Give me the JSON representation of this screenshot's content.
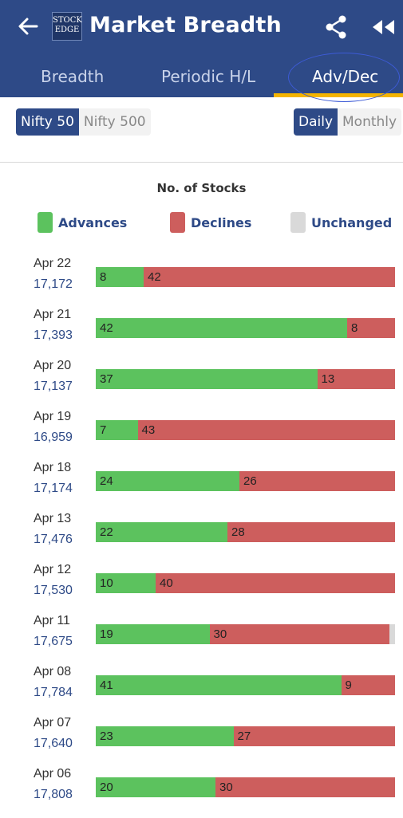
{
  "header": {
    "title": "Market Breadth",
    "logo_text_top": "STOCK",
    "logo_text_bottom": "EDGE"
  },
  "tabs": [
    {
      "label": "Breadth",
      "active": false
    },
    {
      "label": "Periodic H/L",
      "active": false
    },
    {
      "label": "Adv/Dec",
      "active": true
    }
  ],
  "index_toggle": [
    {
      "label": "Nifty 50",
      "selected": true
    },
    {
      "label": "Nifty 500",
      "selected": false
    }
  ],
  "period_toggle": [
    {
      "label": "Daily",
      "selected": true
    },
    {
      "label": "Monthly",
      "selected": false
    }
  ],
  "colors": {
    "advances": "#5cc25e",
    "declines": "#cd5e5d",
    "unchanged": "#d9d9d9",
    "brand": "#2e4a87",
    "accent": "#f4b400"
  },
  "chart_data": {
    "type": "bar",
    "orientation": "horizontal",
    "stacked": true,
    "title": "No. of Stocks",
    "legend": [
      "Advances",
      "Declines",
      "Unchanged"
    ],
    "rows": [
      {
        "date": "Apr 22",
        "close": "17,172",
        "advances": 8,
        "declines": 42,
        "unchanged": 0
      },
      {
        "date": "Apr 21",
        "close": "17,393",
        "advances": 42,
        "declines": 8,
        "unchanged": 0
      },
      {
        "date": "Apr 20",
        "close": "17,137",
        "advances": 37,
        "declines": 13,
        "unchanged": 0
      },
      {
        "date": "Apr 19",
        "close": "16,959",
        "advances": 7,
        "declines": 43,
        "unchanged": 0
      },
      {
        "date": "Apr 18",
        "close": "17,174",
        "advances": 24,
        "declines": 26,
        "unchanged": 0
      },
      {
        "date": "Apr 13",
        "close": "17,476",
        "advances": 22,
        "declines": 28,
        "unchanged": 0
      },
      {
        "date": "Apr 12",
        "close": "17,530",
        "advances": 10,
        "declines": 40,
        "unchanged": 0
      },
      {
        "date": "Apr 11",
        "close": "17,675",
        "advances": 19,
        "declines": 30,
        "unchanged": 1
      },
      {
        "date": "Apr 08",
        "close": "17,784",
        "advances": 41,
        "declines": 9,
        "unchanged": 0
      },
      {
        "date": "Apr 07",
        "close": "17,640",
        "advances": 23,
        "declines": 27,
        "unchanged": 0
      },
      {
        "date": "Apr 06",
        "close": "17,808",
        "advances": 20,
        "declines": 30,
        "unchanged": 0
      }
    ]
  }
}
